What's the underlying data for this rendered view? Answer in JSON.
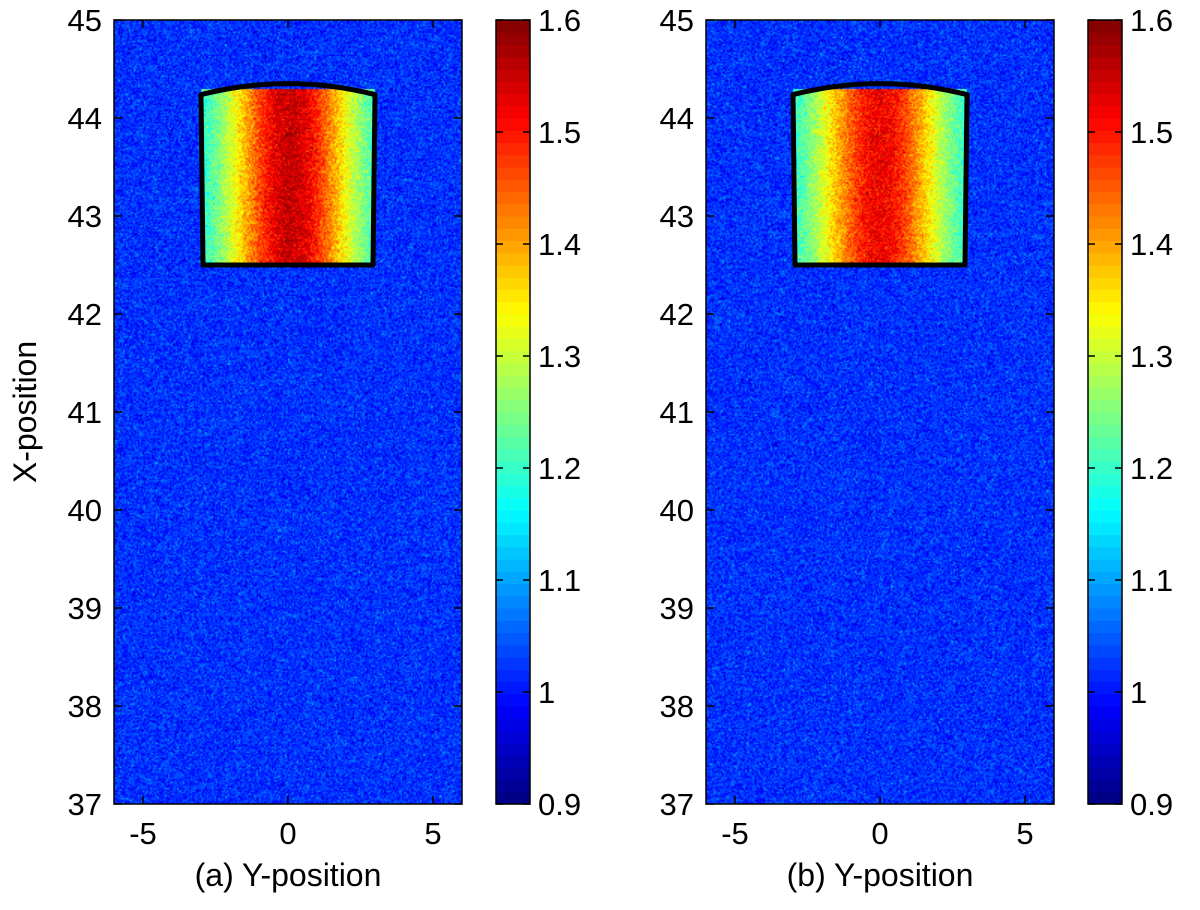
{
  "chart_data": [
    {
      "type": "heatmap",
      "panel_label": "(a)",
      "xlabel": "(a) Y-position",
      "ylabel": "X-position",
      "xlim": [
        -6,
        6
      ],
      "ylim": [
        37,
        45
      ],
      "xticks": [
        "-5",
        "0",
        "5"
      ],
      "yticks": [
        "37",
        "38",
        "39",
        "40",
        "41",
        "42",
        "43",
        "44",
        "45"
      ],
      "colorbar": {
        "range": [
          0.9,
          1.6
        ],
        "ticks": [
          "0.9",
          "1",
          "1.1",
          "1.2",
          "1.3",
          "1.4",
          "1.5",
          "1.6"
        ],
        "colormap": "jet"
      },
      "background_level": 1.02,
      "region": {
        "description_free": true,
        "x_min": 42.5,
        "x_max": 44.3,
        "y_min": -3.0,
        "y_max": 3.0,
        "peak_value": 1.55,
        "peak_y": 0.1,
        "edge_value": 1.13,
        "boundary_color": "#000000"
      },
      "grid": false
    },
    {
      "type": "heatmap",
      "panel_label": "(b)",
      "xlabel": "(b) Y-position",
      "ylabel": "",
      "xlim": [
        -6,
        6
      ],
      "ylim": [
        37,
        45
      ],
      "xticks": [
        "-5",
        "0",
        "5"
      ],
      "yticks": [
        "37",
        "38",
        "39",
        "40",
        "41",
        "42",
        "43",
        "44",
        "45"
      ],
      "colorbar": {
        "range": [
          0.9,
          1.6
        ],
        "ticks": [
          "0.9",
          "1",
          "1.1",
          "1.2",
          "1.3",
          "1.4",
          "1.5",
          "1.6"
        ],
        "colormap": "jet"
      },
      "background_level": 1.02,
      "region": {
        "description_free": true,
        "x_min": 42.5,
        "x_max": 44.3,
        "y_min": -3.0,
        "y_max": 3.0,
        "peak_value": 1.52,
        "peak_y": 0.0,
        "edge_value": 1.13,
        "boundary_color": "#000000"
      },
      "grid": false
    }
  ]
}
